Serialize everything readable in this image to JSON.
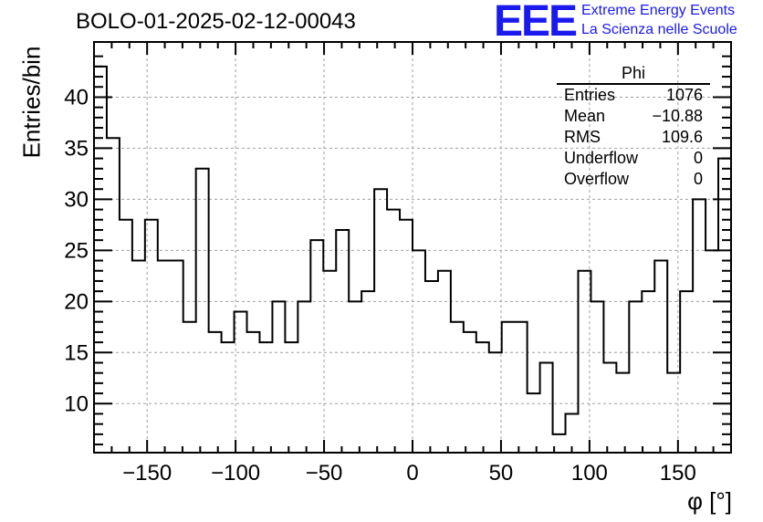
{
  "chart_data": {
    "type": "bar",
    "style": "step-histogram",
    "title": "BOLO-01-2025-02-12-00043",
    "xlabel": "φ [°]",
    "ylabel": "Entries/bin",
    "xlim": [
      -180,
      180
    ],
    "ylim": [
      5.2,
      45.4
    ],
    "xticks": [
      -150,
      -100,
      -50,
      0,
      50,
      100,
      150
    ],
    "yticks": [
      10,
      15,
      20,
      25,
      30,
      35,
      40
    ],
    "grid": true,
    "bin_width": 7.2,
    "bin_edges_start": -180,
    "values": [
      43,
      36,
      28,
      24,
      28,
      24,
      24,
      18,
      33,
      17,
      16,
      19,
      17,
      16,
      20,
      16,
      20,
      26,
      23,
      27,
      20,
      21,
      31,
      29,
      28,
      25,
      22,
      23,
      18,
      17,
      16,
      15,
      18,
      18,
      11,
      14,
      7,
      9,
      23,
      20,
      14,
      13,
      20,
      21,
      24,
      13,
      21,
      30,
      25,
      34
    ],
    "line_color": "#000000"
  },
  "stats_box": {
    "title": "Phi",
    "rows": [
      {
        "label": "Entries",
        "value": "1076"
      },
      {
        "label": "Mean",
        "value": "−10.88"
      },
      {
        "label": "RMS",
        "value": "109.6"
      },
      {
        "label": "Underflow",
        "value": "0"
      },
      {
        "label": "Overflow",
        "value": "0"
      }
    ]
  },
  "branding": {
    "logo": "EEE",
    "line1": "Extreme Energy Events",
    "line2": "La Scienza nelle Scuole",
    "color": "#1a1aee"
  }
}
